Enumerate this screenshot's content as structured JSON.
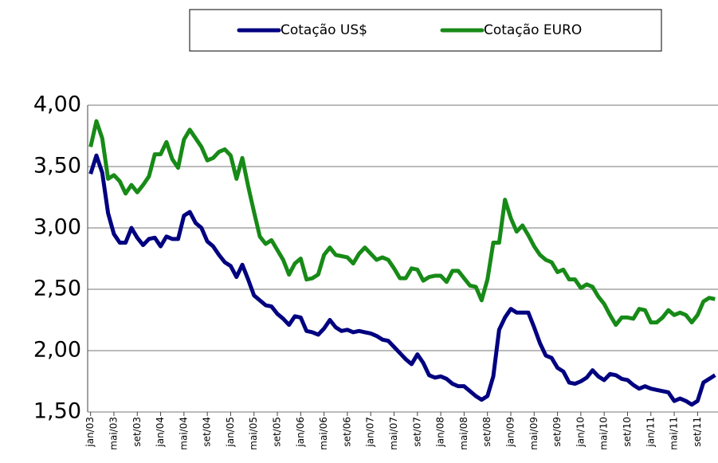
{
  "chart_data": {
    "type": "line",
    "categories": [
      "jan/03",
      null,
      null,
      null,
      "mai/03",
      null,
      null,
      null,
      "set/03",
      null,
      null,
      null,
      "jan/04",
      null,
      null,
      null,
      "mai/04",
      null,
      null,
      null,
      "set/04",
      null,
      null,
      null,
      "jan/05",
      null,
      null,
      null,
      "mai/05",
      null,
      null,
      null,
      "set/05",
      null,
      null,
      null,
      "jan/06",
      null,
      null,
      null,
      "mai/06",
      null,
      null,
      null,
      "set/06",
      null,
      null,
      null,
      "jan/07",
      null,
      null,
      null,
      "mai/07",
      null,
      null,
      null,
      "set/07",
      null,
      null,
      null,
      "jan/08",
      null,
      null,
      null,
      "mai/08",
      null,
      null,
      null,
      "set/08",
      null,
      null,
      null,
      "jan/09",
      null,
      null,
      null,
      "mai/09",
      null,
      null,
      null,
      "set/09",
      null,
      null,
      null,
      "jan/10",
      null,
      null,
      null,
      "mai/10",
      null,
      null,
      null,
      "set/10",
      null,
      null,
      null,
      "jan/11",
      null,
      null,
      null,
      "mai/11",
      null,
      null,
      null,
      "set/11",
      null,
      null,
      null
    ],
    "series": [
      {
        "name": "Cotação US$",
        "color": "#000080",
        "values": [
          3.44,
          3.59,
          3.45,
          3.12,
          2.95,
          2.88,
          2.88,
          3.0,
          2.92,
          2.86,
          2.91,
          2.92,
          2.85,
          2.93,
          2.91,
          2.91,
          3.1,
          3.13,
          3.04,
          3.0,
          2.89,
          2.85,
          2.78,
          2.72,
          2.69,
          2.6,
          2.7,
          2.58,
          2.45,
          2.41,
          2.37,
          2.36,
          2.3,
          2.26,
          2.21,
          2.28,
          2.27,
          2.16,
          2.15,
          2.13,
          2.18,
          2.25,
          2.19,
          2.16,
          2.17,
          2.15,
          2.16,
          2.15,
          2.14,
          2.12,
          2.09,
          2.08,
          2.03,
          1.98,
          1.93,
          1.89,
          1.97,
          1.9,
          1.8,
          1.78,
          1.79,
          1.77,
          1.73,
          1.71,
          1.71,
          1.67,
          1.63,
          1.6,
          1.63,
          1.79,
          2.17,
          2.27,
          2.34,
          2.31,
          2.31,
          2.31,
          2.19,
          2.06,
          1.96,
          1.94,
          1.86,
          1.83,
          1.74,
          1.73,
          1.75,
          1.78,
          1.84,
          1.79,
          1.76,
          1.81,
          1.8,
          1.77,
          1.76,
          1.72,
          1.69,
          1.71,
          1.69,
          1.68,
          1.67,
          1.66,
          1.59,
          1.61,
          1.59,
          1.56,
          1.59,
          1.74,
          1.77,
          1.8
        ]
      },
      {
        "name": "Cotação EURO",
        "color": "#178a17",
        "values": [
          3.66,
          3.87,
          3.73,
          3.4,
          3.43,
          3.38,
          3.28,
          3.35,
          3.29,
          3.35,
          3.42,
          3.6,
          3.6,
          3.7,
          3.56,
          3.49,
          3.72,
          3.8,
          3.73,
          3.66,
          3.55,
          3.57,
          3.62,
          3.64,
          3.59,
          3.4,
          3.57,
          3.34,
          3.13,
          2.93,
          2.87,
          2.9,
          2.82,
          2.74,
          2.62,
          2.71,
          2.75,
          2.58,
          2.59,
          2.62,
          2.78,
          2.84,
          2.78,
          2.77,
          2.76,
          2.71,
          2.79,
          2.84,
          2.79,
          2.74,
          2.76,
          2.74,
          2.67,
          2.59,
          2.59,
          2.67,
          2.66,
          2.57,
          2.6,
          2.61,
          2.61,
          2.56,
          2.65,
          2.65,
          2.59,
          2.53,
          2.52,
          2.41,
          2.58,
          2.88,
          2.88,
          3.23,
          3.08,
          2.97,
          3.02,
          2.94,
          2.85,
          2.78,
          2.74,
          2.72,
          2.64,
          2.66,
          2.58,
          2.58,
          2.51,
          2.54,
          2.52,
          2.44,
          2.38,
          2.29,
          2.21,
          2.27,
          2.27,
          2.26,
          2.34,
          2.33,
          2.23,
          2.23,
          2.27,
          2.33,
          2.29,
          2.31,
          2.29,
          2.23,
          2.29,
          2.4,
          2.43,
          2.42
        ]
      }
    ],
    "ylim": [
      1.5,
      4.0
    ],
    "yticks": [
      {
        "value": 1.5,
        "label": "1,50"
      },
      {
        "value": 2.0,
        "label": "2,00"
      },
      {
        "value": 2.5,
        "label": "2,50"
      },
      {
        "value": 3.0,
        "label": "3,00"
      },
      {
        "value": 3.5,
        "label": "3,50"
      },
      {
        "value": 4.0,
        "label": "4,00"
      }
    ],
    "grid": true,
    "legend": "top"
  }
}
